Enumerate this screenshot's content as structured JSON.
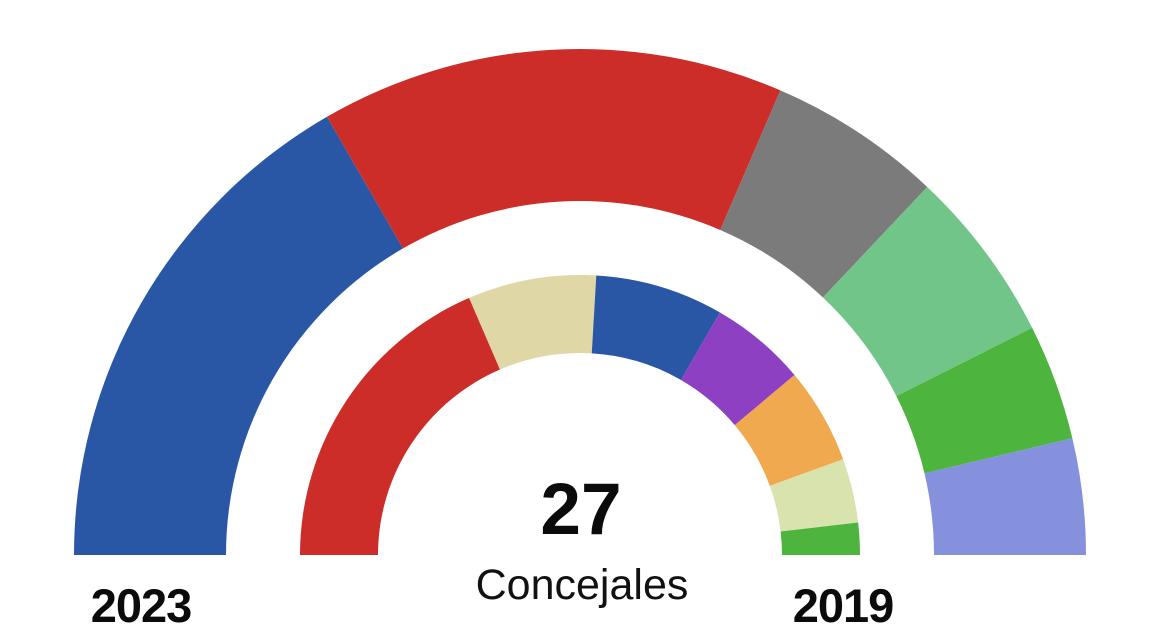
{
  "chart_data": {
    "type": "pie",
    "subtype": "hemicycle-half-donut-comparison",
    "title": "",
    "center_value": "27",
    "center_label": "Concejales",
    "total_seats": 27,
    "legend_position": "none",
    "grid": false,
    "rings": [
      {
        "label": "2023",
        "position": "outer",
        "segments": [
          {
            "name": "blue",
            "seats": 9,
            "color": "#2A57A5"
          },
          {
            "name": "red",
            "seats": 8,
            "color": "#CD2D28"
          },
          {
            "name": "gray",
            "seats": 3,
            "color": "#7B7B7B"
          },
          {
            "name": "sea-green",
            "seats": 3,
            "color": "#72C589"
          },
          {
            "name": "green",
            "seats": 2,
            "color": "#4DB43D"
          },
          {
            "name": "lavender",
            "seats": 2,
            "color": "#8591DC"
          }
        ]
      },
      {
        "label": "2019",
        "position": "inner",
        "segments": [
          {
            "name": "red",
            "seats": 10,
            "color": "#CD2D28"
          },
          {
            "name": "cream",
            "seats": 4,
            "color": "#E0D7A6"
          },
          {
            "name": "blue",
            "seats": 4,
            "color": "#2A57A5"
          },
          {
            "name": "purple",
            "seats": 3,
            "color": "#8D41C2"
          },
          {
            "name": "orange",
            "seats": 3,
            "color": "#F0A94E"
          },
          {
            "name": "pale-green",
            "seats": 2,
            "color": "#D8E3AE"
          },
          {
            "name": "green",
            "seats": 1,
            "color": "#4DB43D"
          }
        ]
      }
    ]
  }
}
